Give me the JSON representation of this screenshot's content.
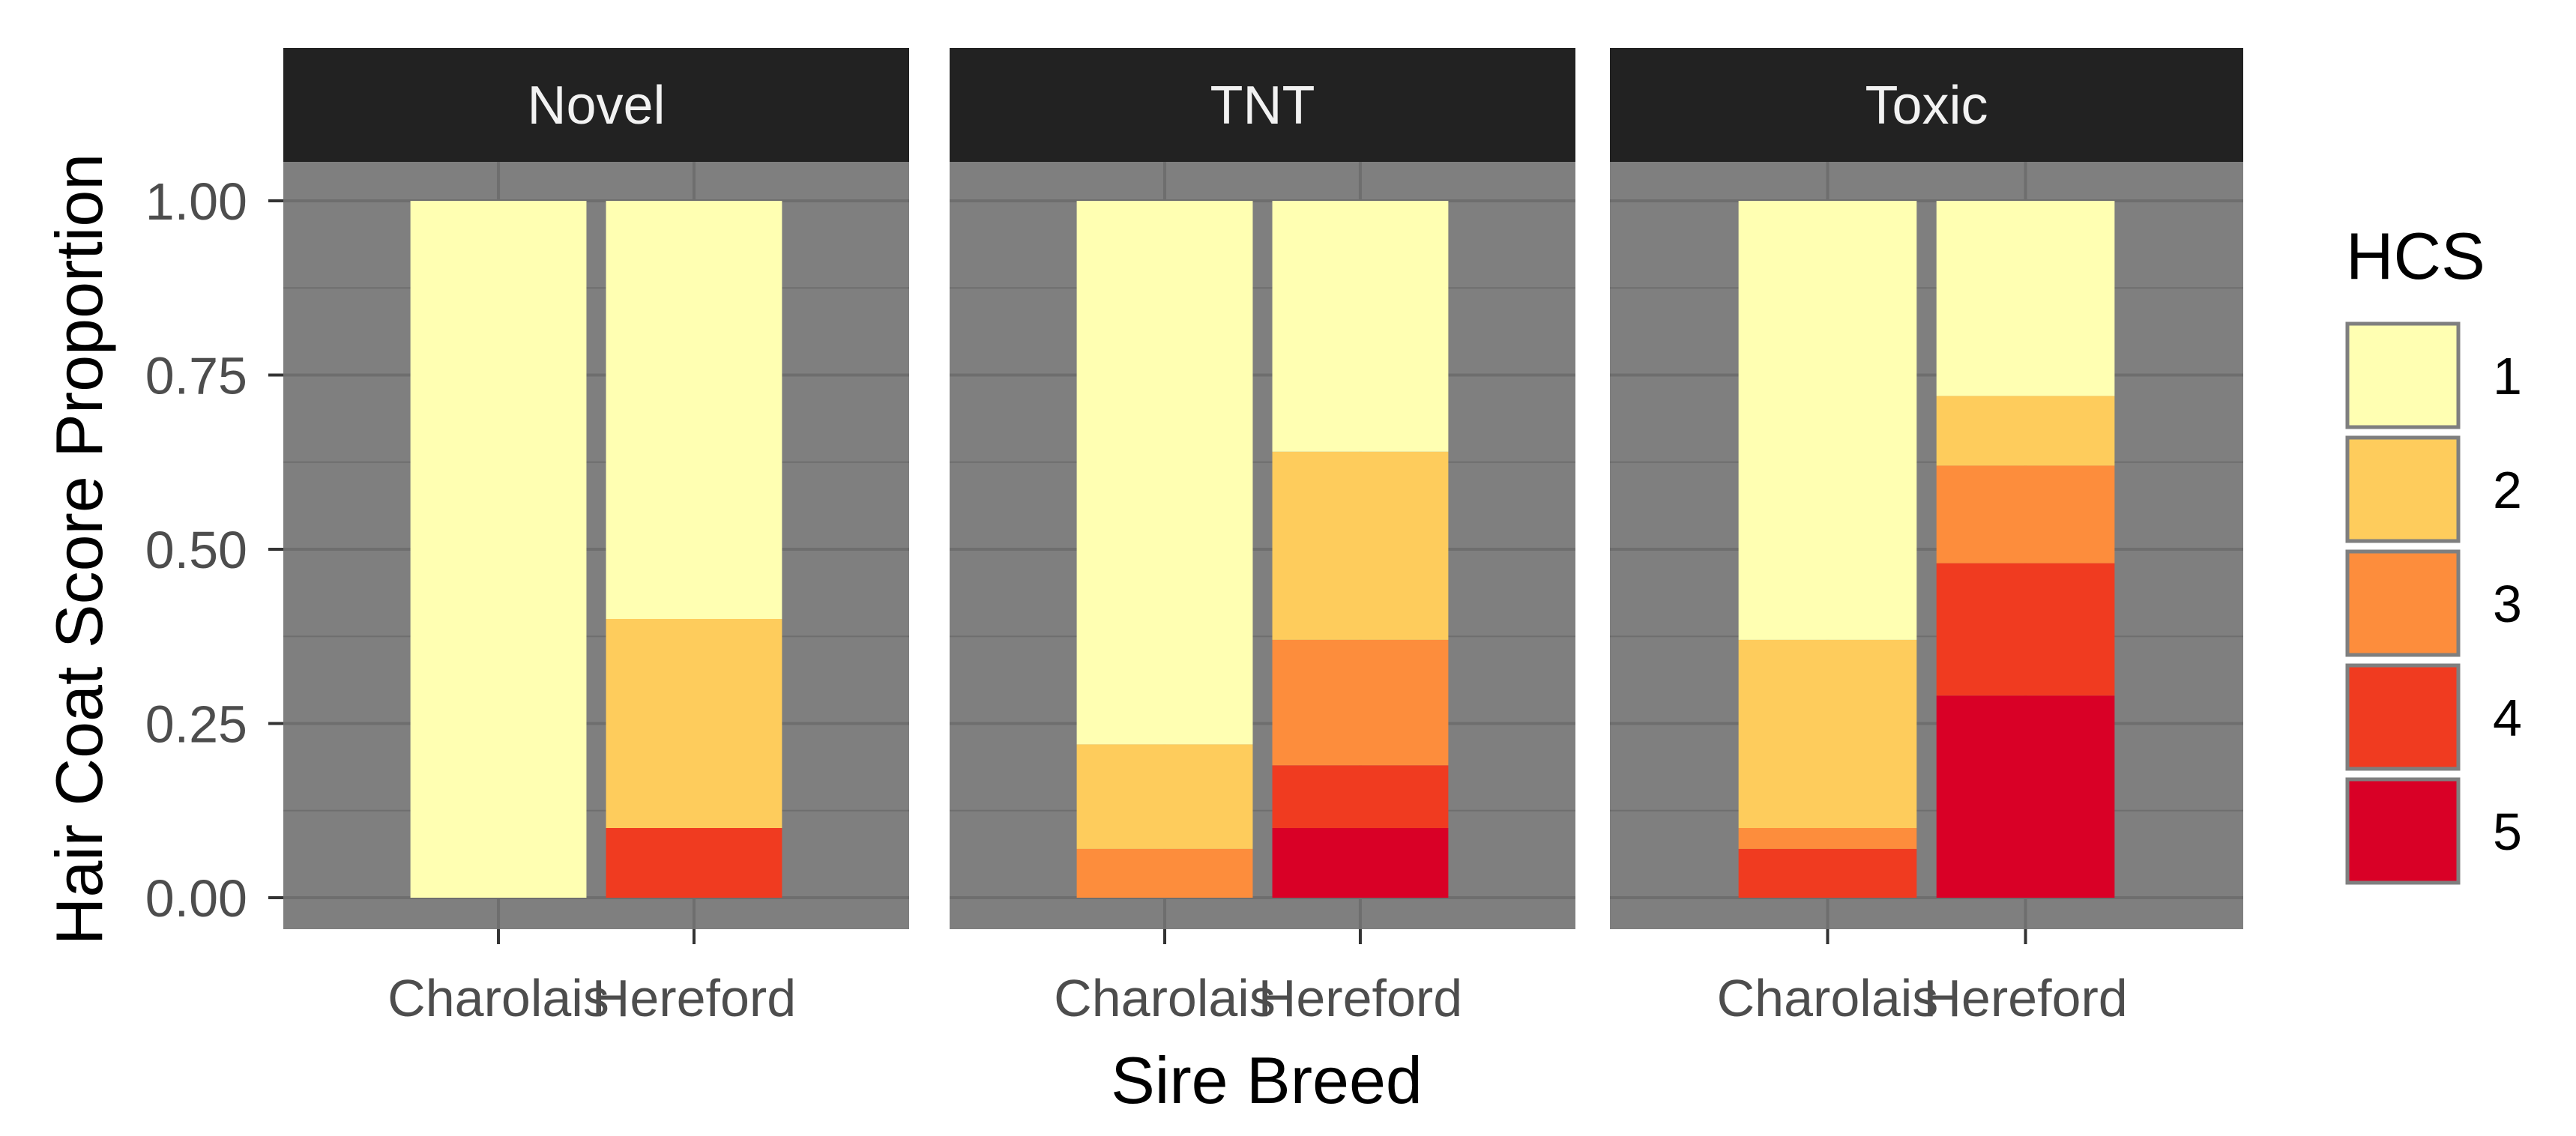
{
  "chart_data": {
    "type": "bar",
    "stacked": true,
    "facet_by": "Treatment",
    "facets": [
      {
        "label": "Novel",
        "categories": [
          "Charolais",
          "Hereford"
        ],
        "series": [
          {
            "name": "1",
            "values": [
              1.0,
              0.6
            ]
          },
          {
            "name": "2",
            "values": [
              0.0,
              0.3
            ]
          },
          {
            "name": "3",
            "values": [
              0.0,
              0.0
            ]
          },
          {
            "name": "4",
            "values": [
              0.0,
              0.1
            ]
          },
          {
            "name": "5",
            "values": [
              0.0,
              0.0
            ]
          }
        ]
      },
      {
        "label": "TNT",
        "categories": [
          "Charolais",
          "Hereford"
        ],
        "series": [
          {
            "name": "1",
            "values": [
              0.78,
              0.36
            ]
          },
          {
            "name": "2",
            "values": [
              0.15,
              0.27
            ]
          },
          {
            "name": "3",
            "values": [
              0.07,
              0.18
            ]
          },
          {
            "name": "4",
            "values": [
              0.0,
              0.09
            ]
          },
          {
            "name": "5",
            "values": [
              0.0,
              0.1
            ]
          }
        ]
      },
      {
        "label": "Toxic",
        "categories": [
          "Charolais",
          "Hereford"
        ],
        "series": [
          {
            "name": "1",
            "values": [
              0.63,
              0.28
            ]
          },
          {
            "name": "2",
            "values": [
              0.27,
              0.1
            ]
          },
          {
            "name": "3",
            "values": [
              0.03,
              0.14
            ]
          },
          {
            "name": "4",
            "values": [
              0.07,
              0.19
            ]
          },
          {
            "name": "5",
            "values": [
              0.0,
              0.29
            ]
          }
        ]
      }
    ],
    "title": "",
    "xlabel": "Sire Breed",
    "ylabel": "Hair Coat Score Proportion",
    "ylim": [
      0,
      1
    ],
    "yticks": [
      "0.00",
      "0.25",
      "0.50",
      "0.75",
      "1.00"
    ],
    "ytick_values": [
      0,
      0.25,
      0.5,
      0.75,
      1
    ],
    "grid": true,
    "legend": {
      "title": "HCS",
      "position": "right",
      "entries": [
        "1",
        "2",
        "3",
        "4",
        "5"
      ]
    },
    "colors": {
      "1": "#ffffb2",
      "2": "#fecc5c",
      "3": "#fd8d3c",
      "4": "#f03b20",
      "5": "#d90026"
    },
    "panel_background": "#7f7f7f",
    "grid_color": "#6e6e6e",
    "strip_background": "#222222"
  }
}
